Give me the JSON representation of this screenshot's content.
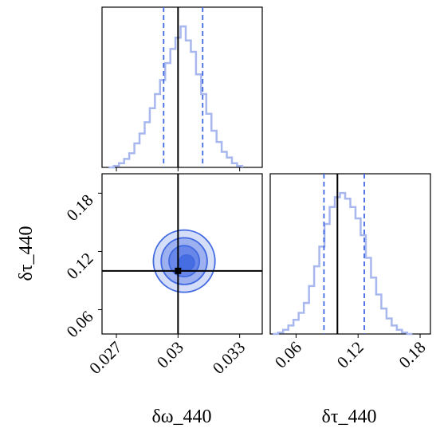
{
  "chart_data": {
    "type": "corner",
    "parameters": [
      "δω_440",
      "δτ_440"
    ],
    "truths": {
      "δω_440": 0.03,
      "δτ_440": 0.1
    },
    "colors": {
      "main": "#4169e1",
      "hist": "#a8b8ef",
      "truth": "#000000"
    },
    "panels": [
      {
        "name": "hist-δω_440",
        "type": "histogram",
        "xlim": [
          0.0263,
          0.0341
        ],
        "xticks": [
          0.027,
          0.03,
          0.033
        ],
        "quantiles": [
          0.0293,
          0.0312
        ],
        "truth": 0.03,
        "bins_x": [
          0.02675,
          0.027,
          0.02725,
          0.0275,
          0.02775,
          0.028,
          0.02825,
          0.0285,
          0.02875,
          0.029,
          0.02925,
          0.0295,
          0.02975,
          0.03,
          0.03025,
          0.0305,
          0.03075,
          0.031,
          0.03125,
          0.0315,
          0.03175,
          0.032,
          0.03225,
          0.0325,
          0.03275,
          0.033
        ],
        "density": [
          0.0,
          0.01,
          0.03,
          0.06,
          0.1,
          0.17,
          0.24,
          0.32,
          0.42,
          0.52,
          0.62,
          0.74,
          0.84,
          0.92,
          1.0,
          0.9,
          0.82,
          0.66,
          0.52,
          0.38,
          0.26,
          0.18,
          0.11,
          0.07,
          0.03,
          0.01
        ]
      },
      {
        "name": "joint",
        "type": "contour",
        "xlim": [
          0.0263,
          0.0341
        ],
        "ylim": [
          0.035,
          0.2
        ],
        "xticks": [
          0.027,
          0.03,
          0.033
        ],
        "yticks": [
          0.06,
          0.12,
          0.18
        ],
        "center": [
          0.0303,
          0.11
        ],
        "levels": [
          {
            "rx": 0.0015,
            "ry": 0.032
          },
          {
            "rx": 0.00112,
            "ry": 0.024
          },
          {
            "rx": 0.00074,
            "ry": 0.016
          },
          {
            "rx": 0.00038,
            "ry": 0.008
          }
        ],
        "truth": [
          0.03,
          0.1
        ]
      },
      {
        "name": "hist-δτ_440",
        "type": "histogram",
        "xlim": [
          0.035,
          0.19
        ],
        "xticks": [
          0.06,
          0.12,
          0.18
        ],
        "quantiles": [
          0.087,
          0.126
        ],
        "truth": 0.1,
        "bins_x": [
          0.04,
          0.045,
          0.05,
          0.055,
          0.06,
          0.065,
          0.07,
          0.075,
          0.08,
          0.085,
          0.09,
          0.095,
          0.1,
          0.105,
          0.11,
          0.115,
          0.12,
          0.125,
          0.13,
          0.135,
          0.14,
          0.145,
          0.15,
          0.155,
          0.16,
          0.165,
          0.17
        ],
        "density": [
          0.0,
          0.01,
          0.03,
          0.06,
          0.1,
          0.15,
          0.22,
          0.34,
          0.48,
          0.62,
          0.78,
          0.9,
          0.97,
          1.0,
          0.96,
          0.9,
          0.82,
          0.7,
          0.54,
          0.4,
          0.28,
          0.18,
          0.11,
          0.06,
          0.03,
          0.01,
          0.0
        ]
      }
    ],
    "xlabels": [
      "δω_440",
      "δτ_440"
    ],
    "ylabels": [
      "δτ_440"
    ]
  }
}
